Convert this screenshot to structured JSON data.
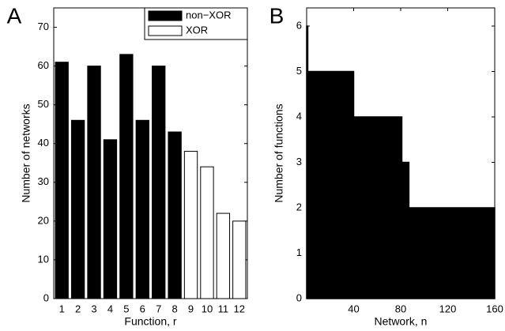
{
  "chart_data": [
    {
      "type": "bar",
      "panel_label": "A",
      "xlabel": "Function, r",
      "ylabel": "Number of networks",
      "categories": [
        "1",
        "2",
        "3",
        "4",
        "5",
        "6",
        "7",
        "8",
        "9",
        "10",
        "11",
        "12"
      ],
      "series": [
        {
          "name": "non−XOR",
          "color": "#000000",
          "values": [
            61,
            46,
            60,
            41,
            63,
            46,
            60,
            43,
            null,
            null,
            null,
            null
          ]
        },
        {
          "name": "XOR",
          "color": "#ffffff",
          "values": [
            null,
            null,
            null,
            null,
            null,
            null,
            null,
            null,
            38,
            34,
            22,
            20
          ]
        }
      ],
      "ylim": [
        0,
        75
      ],
      "yticks": [
        0,
        10,
        20,
        30,
        40,
        50,
        60,
        70
      ],
      "legend": "upper right"
    },
    {
      "type": "step",
      "panel_label": "B",
      "xlabel": "Network, n",
      "ylabel": "Number of functions",
      "x": [
        0,
        1,
        40,
        81,
        87,
        160
      ],
      "values": [
        6,
        5,
        4,
        3,
        2,
        2
      ],
      "color": "#000000",
      "xlim": [
        0,
        160
      ],
      "xticks": [
        40,
        80,
        120,
        160
      ],
      "ylim": [
        0,
        6.4
      ],
      "yticks": [
        0,
        1,
        2,
        3,
        4,
        5,
        6
      ]
    }
  ]
}
